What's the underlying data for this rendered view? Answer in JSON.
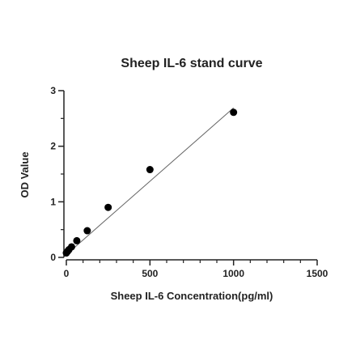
{
  "chart_data": {
    "type": "scatter",
    "title": "Sheep IL-6 stand curve",
    "xlabel": "Sheep IL-6 Concentration(pg/ml)",
    "ylabel": "OD Value",
    "xlim": [
      0,
      1500
    ],
    "ylim": [
      0,
      3
    ],
    "x_ticks": [
      0,
      500,
      1000,
      1500
    ],
    "x_tick_labels": [
      "0",
      "500",
      "1000",
      "1500"
    ],
    "x_minor_step": 100,
    "y_ticks": [
      0,
      1,
      2,
      3
    ],
    "y_tick_labels": [
      "0",
      "1",
      "2",
      "3"
    ],
    "y_minor_step": 0.5,
    "grid": false,
    "series": [
      {
        "points": [
          {
            "x": 0,
            "y": 0.08
          },
          {
            "x": 7.8,
            "y": 0.11
          },
          {
            "x": 15.6,
            "y": 0.14
          },
          {
            "x": 31.25,
            "y": 0.19
          },
          {
            "x": 62.5,
            "y": 0.3
          },
          {
            "x": 125,
            "y": 0.48
          },
          {
            "x": 250,
            "y": 0.9
          },
          {
            "x": 500,
            "y": 1.58
          },
          {
            "x": 1000,
            "y": 2.61
          }
        ],
        "color": "#000000"
      }
    ],
    "fit_line": {
      "x": [
        0,
        1000
      ],
      "y": [
        0.05,
        2.69
      ],
      "color": "#666666"
    }
  }
}
